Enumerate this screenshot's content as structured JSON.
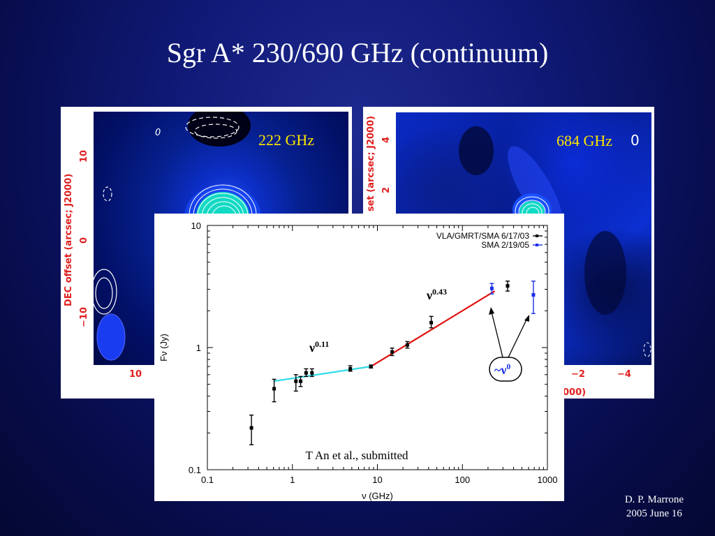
{
  "title": "Sgr A* 230/690 GHz (continuum)",
  "left_map": {
    "label": "222 GHz",
    "y_axis_label": "DEC offset (arcsec; J2000)",
    "y_ticks": [
      "10",
      "0",
      "−10"
    ],
    "x_ticks": [
      "10"
    ],
    "contour_label": "0"
  },
  "right_map": {
    "label": "684 GHz",
    "y_axis_label": "set (arcsec; J2000)",
    "y_ticks": [
      "4",
      "2"
    ],
    "x_ticks": [
      "−2",
      "−4"
    ],
    "x_axis_fragment": "000)",
    "contour_label": "0"
  },
  "chart_data": {
    "type": "scatter",
    "xlabel": "ν (GHz)",
    "ylabel": "Fν (Jy)",
    "x_scale": "log",
    "y_scale": "log",
    "xlim": [
      0.1,
      1000
    ],
    "ylim": [
      0.1,
      10
    ],
    "x_ticks": [
      "0.1",
      "1",
      "10",
      "100",
      "1000"
    ],
    "y_ticks": [
      "0.1",
      "1",
      "10"
    ],
    "series": [
      {
        "name": "VLA/GMRT/SMA 6/17/03",
        "color": "#000000",
        "points": [
          {
            "x": 0.33,
            "y": 0.22,
            "err": [
              0.16,
              0.28
            ]
          },
          {
            "x": 0.61,
            "y": 0.46,
            "err": [
              0.36,
              0.55
            ]
          },
          {
            "x": 1.1,
            "y": 0.53,
            "err": [
              0.44,
              0.6
            ]
          },
          {
            "x": 1.25,
            "y": 0.53,
            "err": [
              0.48,
              0.58
            ]
          },
          {
            "x": 1.45,
            "y": 0.62,
            "err": [
              0.58,
              0.67
            ]
          },
          {
            "x": 1.7,
            "y": 0.62,
            "err": [
              0.58,
              0.67
            ]
          },
          {
            "x": 4.8,
            "y": 0.67,
            "err": [
              0.64,
              0.71
            ]
          },
          {
            "x": 8.4,
            "y": 0.7,
            "err": [
              0.68,
              0.72
            ]
          },
          {
            "x": 14.9,
            "y": 0.92,
            "err": [
              0.86,
              0.99
            ]
          },
          {
            "x": 22.5,
            "y": 1.05,
            "err": [
              0.99,
              1.12
            ]
          },
          {
            "x": 43,
            "y": 1.6,
            "err": [
              1.45,
              1.8
            ]
          },
          {
            "x": 340,
            "y": 3.2,
            "err": [
              2.9,
              3.5
            ]
          }
        ]
      },
      {
        "name": "SMA 2/19/05",
        "color": "#1a2ee8",
        "points": [
          {
            "x": 222,
            "y": 3.05,
            "err": [
              2.75,
              3.35
            ]
          },
          {
            "x": 684,
            "y": 2.7,
            "err": [
              1.9,
              3.5
            ]
          }
        ]
      }
    ],
    "fits": [
      {
        "label": "ν0.11",
        "color": "#33dcea",
        "from": [
          0.6,
          0.53
        ],
        "to": [
          8.4,
          0.7
        ]
      },
      {
        "label": "ν0.43",
        "color": "#e01010",
        "from": [
          8.4,
          0.7
        ],
        "to": [
          240,
          2.9
        ]
      }
    ],
    "annotations": {
      "nu011_base": "ν",
      "nu011_exp": "0.11",
      "nu043_base": "ν",
      "nu043_exp": "0.43",
      "flat_base": "~ν",
      "flat_exp": "0",
      "citation": "T An et al., submitted"
    }
  },
  "credit": {
    "author": "D. P. Marrone",
    "date": "2005 June 16"
  }
}
